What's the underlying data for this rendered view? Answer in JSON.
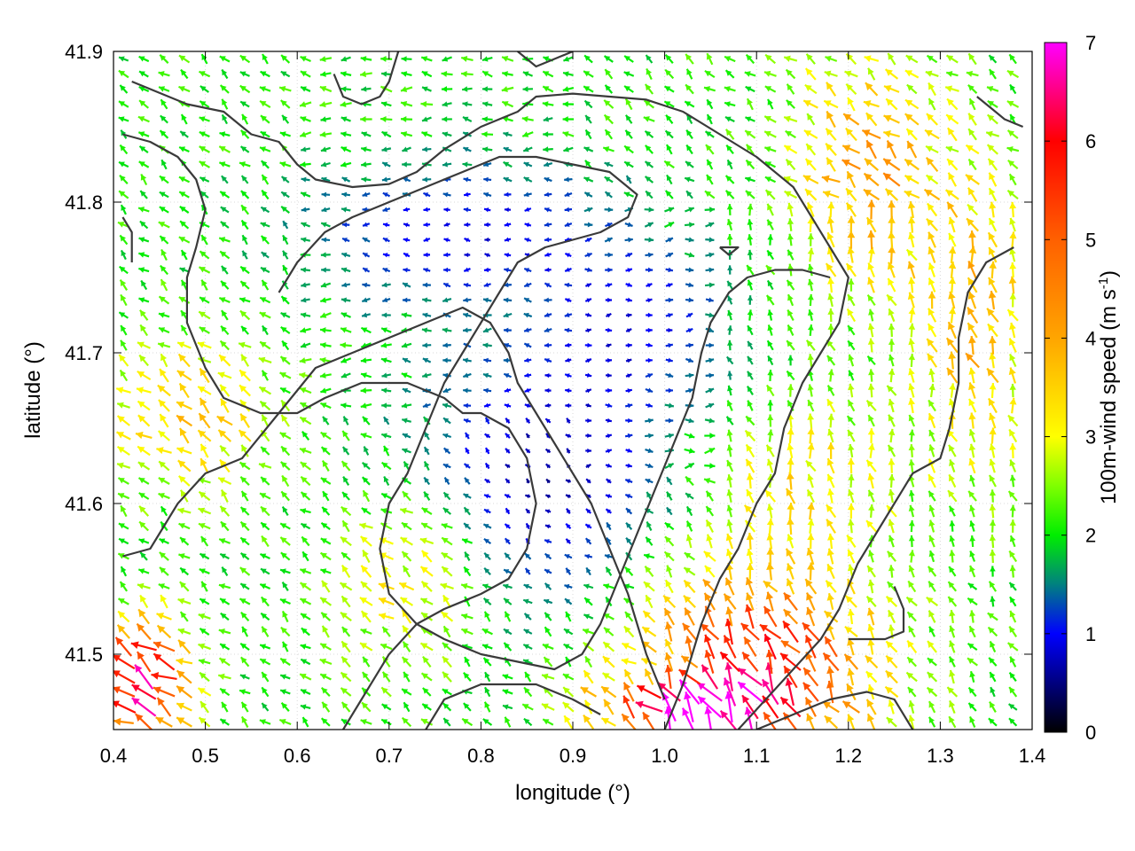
{
  "chart_data": {
    "type": "vector field",
    "xlabel": "longitude (°)",
    "ylabel": "latitude (°)",
    "colorbar_label": "100m-wind speed (m s",
    "colorbar_label_sup": "-1",
    "colorbar_label_end": ")",
    "xlim": [
      0.4,
      1.4
    ],
    "ylim": [
      41.45,
      41.9
    ],
    "x_ticks": [
      {
        "value": 0.4,
        "label": "0.4"
      },
      {
        "value": 0.5,
        "label": "0.5"
      },
      {
        "value": 0.6,
        "label": "0.6"
      },
      {
        "value": 0.7,
        "label": "0.7"
      },
      {
        "value": 0.8,
        "label": "0.8"
      },
      {
        "value": 0.9,
        "label": "0.9"
      },
      {
        "value": 1.0,
        "label": "1.0"
      },
      {
        "value": 1.1,
        "label": "1.1"
      },
      {
        "value": 1.2,
        "label": "1.2"
      },
      {
        "value": 1.3,
        "label": "1.3"
      },
      {
        "value": 1.4,
        "label": "1.4"
      }
    ],
    "y_ticks": [
      {
        "value": 41.5,
        "label": "41.5"
      },
      {
        "value": 41.6,
        "label": "41.6"
      },
      {
        "value": 41.7,
        "label": "41.7"
      },
      {
        "value": 41.8,
        "label": "41.8"
      },
      {
        "value": 41.9,
        "label": "41.9"
      }
    ],
    "colorbar": {
      "range": [
        0,
        7
      ],
      "ticks": [
        {
          "value": 0,
          "label": "0"
        },
        {
          "value": 1,
          "label": "1"
        },
        {
          "value": 2,
          "label": "2"
        },
        {
          "value": 3,
          "label": "3"
        },
        {
          "value": 4,
          "label": "4"
        },
        {
          "value": 5,
          "label": "5"
        },
        {
          "value": 6,
          "label": "6"
        },
        {
          "value": 7,
          "label": "7"
        }
      ],
      "stops": [
        {
          "value": 0,
          "color": "#000000"
        },
        {
          "value": 0.5,
          "color": "#00007f"
        },
        {
          "value": 1,
          "color": "#0000ff"
        },
        {
          "value": 1.5,
          "color": "#008080"
        },
        {
          "value": 2,
          "color": "#00ee00"
        },
        {
          "value": 2.5,
          "color": "#7fff00"
        },
        {
          "value": 3,
          "color": "#ffff00"
        },
        {
          "value": 4,
          "color": "#ffa500"
        },
        {
          "value": 5,
          "color": "#ff6000"
        },
        {
          "value": 6,
          "color": "#ff0000"
        },
        {
          "value": 7,
          "color": "#ff00ff"
        }
      ]
    },
    "field_sampling": {
      "dlon": 0.022,
      "dlat": 0.01
    },
    "contours": [
      [
        [
          0.42,
          41.88
        ],
        [
          0.48,
          41.865
        ],
        [
          0.52,
          41.86
        ],
        [
          0.55,
          41.845
        ],
        [
          0.58,
          41.84
        ],
        [
          0.6,
          41.825
        ],
        [
          0.62,
          41.815
        ],
        [
          0.66,
          41.81
        ],
        [
          0.7,
          41.812
        ],
        [
          0.73,
          41.82
        ],
        [
          0.76,
          41.835
        ],
        [
          0.8,
          41.85
        ],
        [
          0.84,
          41.86
        ],
        [
          0.86,
          41.87
        ],
        [
          0.9,
          41.872
        ],
        [
          0.94,
          41.87
        ],
        [
          0.98,
          41.868
        ],
        [
          1.02,
          41.86
        ],
        [
          1.06,
          41.845
        ],
        [
          1.1,
          41.83
        ],
        [
          1.14,
          41.81
        ],
        [
          1.16,
          41.79
        ],
        [
          1.18,
          41.77
        ],
        [
          1.2,
          41.75
        ],
        [
          1.19,
          41.72
        ],
        [
          1.17,
          41.7
        ],
        [
          1.15,
          41.68
        ],
        [
          1.13,
          41.65
        ],
        [
          1.12,
          41.62
        ],
        [
          1.1,
          41.6
        ],
        [
          1.08,
          41.57
        ],
        [
          1.06,
          41.55
        ],
        [
          1.04,
          41.52
        ],
        [
          1.02,
          41.48
        ],
        [
          1.0,
          41.45
        ]
      ],
      [
        [
          0.41,
          41.845
        ],
        [
          0.44,
          41.84
        ],
        [
          0.47,
          41.83
        ],
        [
          0.49,
          41.815
        ],
        [
          0.5,
          41.795
        ],
        [
          0.49,
          41.77
        ],
        [
          0.48,
          41.75
        ],
        [
          0.48,
          41.72
        ],
        [
          0.5,
          41.69
        ],
        [
          0.52,
          41.67
        ],
        [
          0.56,
          41.66
        ],
        [
          0.6,
          41.66
        ],
        [
          0.63,
          41.67
        ],
        [
          0.67,
          41.68
        ],
        [
          0.72,
          41.68
        ],
        [
          0.76,
          41.67
        ],
        [
          0.78,
          41.66
        ],
        [
          0.8,
          41.66
        ],
        [
          0.83,
          41.65
        ],
        [
          0.85,
          41.63
        ],
        [
          0.86,
          41.6
        ],
        [
          0.85,
          41.57
        ],
        [
          0.83,
          41.55
        ],
        [
          0.8,
          41.54
        ],
        [
          0.76,
          41.53
        ],
        [
          0.73,
          41.52
        ],
        [
          0.7,
          41.5
        ],
        [
          0.67,
          41.47
        ],
        [
          0.65,
          41.45
        ]
      ],
      [
        [
          0.58,
          41.74
        ],
        [
          0.6,
          41.76
        ],
        [
          0.63,
          41.78
        ],
        [
          0.66,
          41.79
        ],
        [
          0.7,
          41.8
        ],
        [
          0.74,
          41.81
        ],
        [
          0.78,
          41.82
        ],
        [
          0.82,
          41.83
        ],
        [
          0.86,
          41.83
        ],
        [
          0.9,
          41.825
        ],
        [
          0.94,
          41.82
        ],
        [
          0.97,
          41.805
        ],
        [
          0.96,
          41.79
        ],
        [
          0.93,
          41.78
        ],
        [
          0.9,
          41.775
        ],
        [
          0.87,
          41.77
        ],
        [
          0.84,
          41.76
        ],
        [
          0.82,
          41.74
        ],
        [
          0.8,
          41.72
        ],
        [
          0.78,
          41.7
        ],
        [
          0.76,
          41.68
        ],
        [
          0.74,
          41.65
        ],
        [
          0.72,
          41.62
        ],
        [
          0.7,
          41.6
        ],
        [
          0.69,
          41.57
        ],
        [
          0.7,
          41.54
        ],
        [
          0.73,
          41.52
        ],
        [
          0.76,
          41.51
        ],
        [
          0.8,
          41.5
        ],
        [
          0.84,
          41.495
        ],
        [
          0.88,
          41.49
        ],
        [
          0.91,
          41.5
        ],
        [
          0.93,
          41.52
        ],
        [
          0.95,
          41.55
        ],
        [
          0.97,
          41.58
        ],
        [
          0.99,
          41.61
        ],
        [
          1.01,
          41.64
        ],
        [
          1.03,
          41.67
        ],
        [
          1.04,
          41.7
        ],
        [
          1.05,
          41.72
        ],
        [
          1.07,
          41.74
        ],
        [
          1.09,
          41.75
        ],
        [
          1.12,
          41.755
        ],
        [
          1.15,
          41.755
        ],
        [
          1.18,
          41.75
        ]
      ],
      [
        [
          0.41,
          41.565
        ],
        [
          0.44,
          41.57
        ],
        [
          0.47,
          41.6
        ],
        [
          0.5,
          41.62
        ],
        [
          0.54,
          41.63
        ],
        [
          0.58,
          41.66
        ],
        [
          0.62,
          41.69
        ],
        [
          0.66,
          41.7
        ],
        [
          0.7,
          41.71
        ],
        [
          0.74,
          41.72
        ],
        [
          0.78,
          41.73
        ],
        [
          0.81,
          41.72
        ],
        [
          0.83,
          41.7
        ],
        [
          0.84,
          41.68
        ],
        [
          0.86,
          41.66
        ],
        [
          0.88,
          41.64
        ],
        [
          0.9,
          41.62
        ],
        [
          0.92,
          41.6
        ],
        [
          0.94,
          41.57
        ],
        [
          0.96,
          41.54
        ],
        [
          0.98,
          41.5
        ],
        [
          1.0,
          41.47
        ]
      ],
      [
        [
          1.38,
          41.77
        ],
        [
          1.35,
          41.76
        ],
        [
          1.33,
          41.74
        ],
        [
          1.32,
          41.71
        ],
        [
          1.32,
          41.68
        ],
        [
          1.31,
          41.65
        ],
        [
          1.3,
          41.63
        ],
        [
          1.27,
          41.62
        ],
        [
          1.25,
          41.6
        ],
        [
          1.23,
          41.58
        ],
        [
          1.21,
          41.56
        ],
        [
          1.19,
          41.53
        ],
        [
          1.17,
          41.51
        ],
        [
          1.14,
          41.49
        ],
        [
          1.11,
          41.47
        ],
        [
          1.08,
          41.45
        ]
      ],
      [
        [
          1.1,
          41.45
        ],
        [
          1.14,
          41.46
        ],
        [
          1.18,
          41.47
        ],
        [
          1.22,
          41.475
        ],
        [
          1.25,
          41.47
        ],
        [
          1.27,
          41.45
        ]
      ],
      [
        [
          1.2,
          41.51
        ],
        [
          1.24,
          41.51
        ],
        [
          1.26,
          41.515
        ],
        [
          1.26,
          41.53
        ],
        [
          1.25,
          41.545
        ]
      ],
      [
        [
          1.06,
          41.77
        ],
        [
          1.08,
          41.77
        ],
        [
          1.07,
          41.765
        ],
        [
          1.06,
          41.77
        ]
      ],
      [
        [
          0.64,
          41.885
        ],
        [
          0.65,
          41.87
        ],
        [
          0.67,
          41.865
        ],
        [
          0.69,
          41.87
        ],
        [
          0.7,
          41.88
        ],
        [
          0.71,
          41.9
        ]
      ],
      [
        [
          0.84,
          41.9
        ],
        [
          0.86,
          41.89
        ],
        [
          0.88,
          41.895
        ],
        [
          0.9,
          41.9
        ]
      ],
      [
        [
          1.34,
          41.87
        ],
        [
          1.36,
          41.86
        ],
        [
          1.37,
          41.855
        ],
        [
          1.39,
          41.85
        ]
      ],
      [
        [
          0.74,
          41.45
        ],
        [
          0.76,
          41.47
        ],
        [
          0.8,
          41.48
        ],
        [
          0.86,
          41.48
        ],
        [
          0.9,
          41.47
        ],
        [
          0.93,
          41.46
        ]
      ],
      [
        [
          0.41,
          41.79
        ],
        [
          0.42,
          41.78
        ],
        [
          0.42,
          41.76
        ]
      ]
    ]
  }
}
